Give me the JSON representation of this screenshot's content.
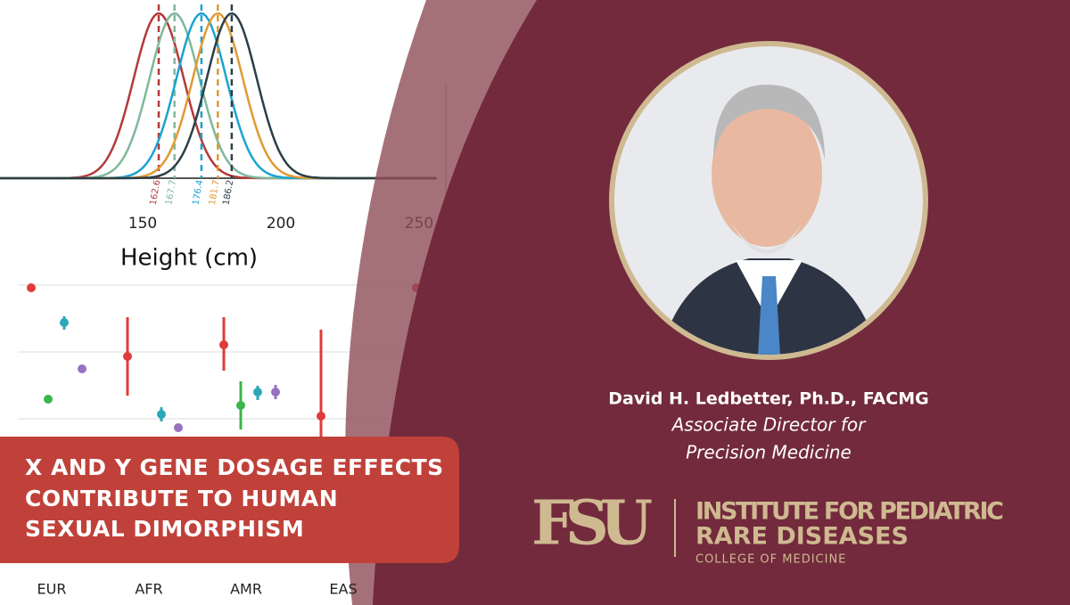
{
  "background_figure": {
    "density_means": [
      162.6,
      167.7,
      176.4,
      181.7,
      186.2
    ],
    "x_tick_labels": [
      150,
      200,
      250
    ],
    "x_axis_label": "Height (cm)",
    "groups": [
      "EUR",
      "AFR",
      "AMR",
      "EAS"
    ]
  },
  "headline": [
    "X AND Y GENE DOSAGE EFFECTS",
    "CONTRIBUTE TO HUMAN",
    "SEXUAL DIMORPHISM"
  ],
  "person": {
    "name": "David H. Ledbetter, Ph.D., FACMG",
    "title": [
      "Associate Director for",
      "Precision Medicine"
    ]
  },
  "logo": {
    "mark": "FSU",
    "institute": [
      "INSTITUTE FOR PEDIATRIC",
      "RARE DISEASES"
    ],
    "college": "COLLEGE OF MEDICINE"
  }
}
